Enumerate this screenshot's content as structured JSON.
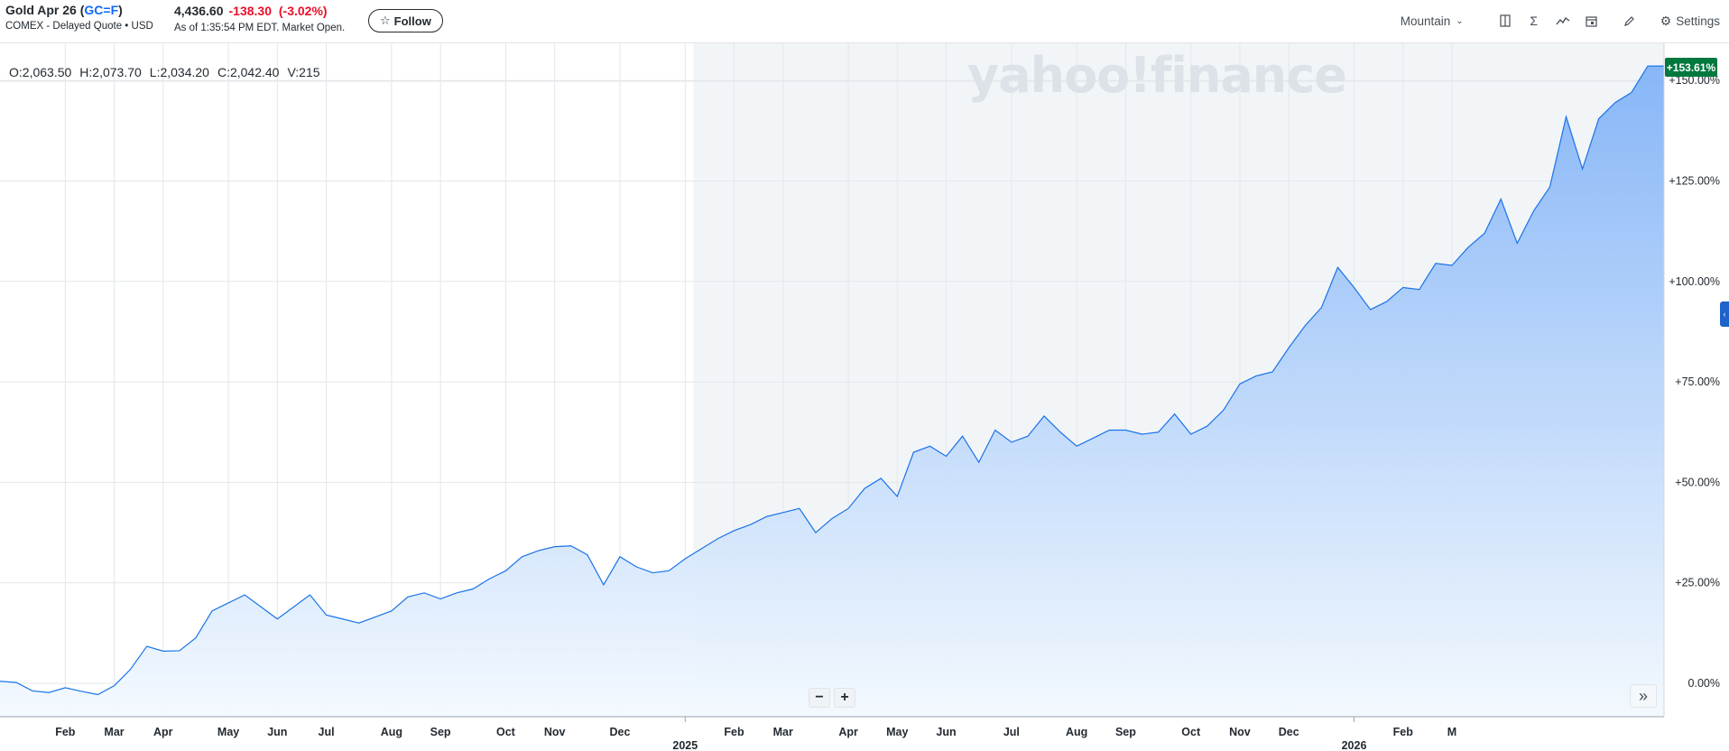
{
  "header": {
    "title_prefix": "Gold Apr 26 (",
    "ticker": "GC=F",
    "title_suffix": ")",
    "exchange": "COMEX - Delayed Quote • USD",
    "price": "4,436.60",
    "change": "-138.30",
    "change_pct": "(-3.02%)",
    "as_of": "As of 1:35:54 PM EDT. Market Open.",
    "follow_label": "Follow"
  },
  "toolbar": {
    "mountain_label": "Mountain",
    "settings_label": "Settings"
  },
  "ohlc": {
    "open": "O:2,063.50",
    "high": "H:2,073.70",
    "low": "L:2,034.20",
    "close": "C:2,042.40",
    "volume": "V:215"
  },
  "watermark": "yahoo!finance",
  "badge": "+153.61%",
  "colors": {
    "line": "#1a73e8",
    "fill_top": "#82b3f7",
    "fill_bottom": "#f3f9fe",
    "shade": "#f2f5f8",
    "positive_badge": "#00783e",
    "negative": "#eb0f29",
    "ticker": "#0f69ff"
  },
  "icons": [
    "chevron-down-icon",
    "compare-icon",
    "sigma-icon",
    "indicator-icon",
    "calendar-icon",
    "pencil-icon",
    "gear-icon",
    "star-icon",
    "minus-icon",
    "plus-icon",
    "double-chevron-right-icon"
  ],
  "chart_data": {
    "type": "area",
    "ylabel_unit": "% change",
    "ylim": [
      -8,
      158
    ],
    "yticks": [
      0,
      25,
      50,
      75,
      100,
      125,
      150
    ],
    "ytick_labels": [
      "0.00%",
      "+25.00%",
      "+50.00%",
      "+75.00%",
      "+100.00%",
      "+125.00%",
      "+150.00%"
    ],
    "grid": true,
    "shaded_from_index": 42,
    "x_labels": [
      {
        "i": 4,
        "label": "Feb"
      },
      {
        "i": 7,
        "label": "Mar"
      },
      {
        "i": 10,
        "label": "Apr"
      },
      {
        "i": 14,
        "label": "May"
      },
      {
        "i": 17,
        "label": "Jun"
      },
      {
        "i": 20,
        "label": "Jul"
      },
      {
        "i": 24,
        "label": "Aug"
      },
      {
        "i": 27,
        "label": "Sep"
      },
      {
        "i": 31,
        "label": "Oct"
      },
      {
        "i": 34,
        "label": "Nov"
      },
      {
        "i": 38,
        "label": "Dec"
      },
      {
        "i": 45,
        "label": "Feb"
      },
      {
        "i": 48,
        "label": "Mar"
      },
      {
        "i": 52,
        "label": "Apr"
      },
      {
        "i": 55,
        "label": "May"
      },
      {
        "i": 58,
        "label": "Jun"
      },
      {
        "i": 62,
        "label": "Jul"
      },
      {
        "i": 66,
        "label": "Aug"
      },
      {
        "i": 69,
        "label": "Sep"
      },
      {
        "i": 73,
        "label": "Oct"
      },
      {
        "i": 76,
        "label": "Nov"
      },
      {
        "i": 79,
        "label": "Dec"
      },
      {
        "i": 86,
        "label": "Feb"
      },
      {
        "i": 89,
        "label": "M"
      }
    ],
    "year_labels": [
      {
        "i": 42,
        "label": "2025"
      },
      {
        "i": 83,
        "label": "2026"
      }
    ],
    "series": [
      {
        "values": [
          0.5,
          0.2,
          -1.9,
          -2.3,
          -1.1,
          -2.0,
          -2.8,
          -0.6,
          3.5,
          9.2,
          8.0,
          8.1,
          11.3,
          18.0,
          20.0,
          22.0,
          19.0,
          16.0,
          19.0,
          22.0,
          17.0,
          16.0,
          15.0,
          16.5,
          18.0,
          21.5,
          22.5,
          21.0,
          22.5,
          23.5,
          26.0,
          28.0,
          31.5,
          33.0,
          34.0,
          34.2,
          32.0,
          24.5,
          31.5,
          29.0,
          27.5,
          28.0,
          31.0,
          33.5,
          36.0,
          38.0,
          39.5,
          41.5,
          42.5,
          43.5,
          37.5,
          41.0,
          43.5,
          48.5,
          51.0,
          46.5,
          57.5,
          59.0,
          56.5,
          61.5,
          55.0,
          63.0,
          60.0,
          61.5,
          66.5,
          62.5,
          59.0,
          61.0,
          63.0,
          63.0,
          62.0,
          62.5,
          67.0,
          62.0,
          64.0,
          68.0,
          74.5,
          76.5,
          77.5,
          83.5,
          89.0,
          93.5,
          103.5,
          98.5,
          93.0,
          95.0,
          98.5,
          98.0,
          104.5,
          104.0,
          108.5,
          112.0,
          120.5,
          109.5,
          117.5,
          123.5,
          141.0,
          128.0,
          140.5,
          144.5,
          147.0,
          153.6,
          153.61
        ]
      }
    ]
  }
}
